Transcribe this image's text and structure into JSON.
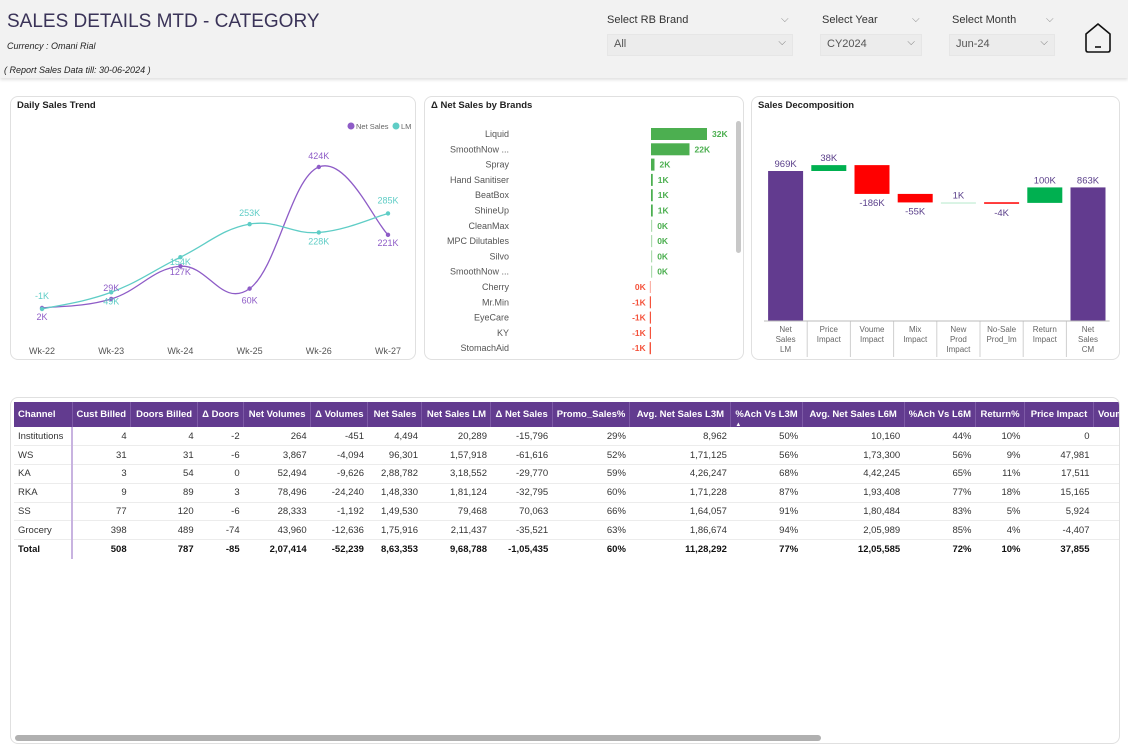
{
  "header": {
    "title": "SALES DETAILS MTD - CATEGORY",
    "currency": "Currency : Omani Rial",
    "report_date": "( Report Sales Data till: 30-06-2024 )"
  },
  "slicers": {
    "brand": {
      "label": "Select RB Brand",
      "value": "All"
    },
    "year": {
      "label": "Select Year",
      "value": "CY2024"
    },
    "month": {
      "label": "Select Month",
      "value": "Jun-24"
    }
  },
  "icons": {
    "home": "home-icon",
    "chevron": "chevron-down-icon"
  },
  "colors": {
    "purple": "#623b8f",
    "net_sales_line": "#8e5cc7",
    "lm_line": "#5fcdc6",
    "green": "#00b050",
    "red": "#ff0000",
    "pos_bar": "#4caf50",
    "neg_bar": "#f4533c"
  },
  "chart_data": [
    {
      "type": "line",
      "title": "Daily Sales Trend",
      "categories": [
        "Wk-22",
        "Wk-23",
        "Wk-24",
        "Wk-25",
        "Wk-26",
        "Wk-27"
      ],
      "series": [
        {
          "name": "Net Sales",
          "values": [
            2,
            29,
            127,
            60,
            424,
            221
          ],
          "labels": [
            "2K",
            "29K",
            "127K",
            "60K",
            "424K",
            "221K"
          ]
        },
        {
          "name": "LM",
          "values": [
            -1,
            49,
            154,
            253,
            228,
            285
          ],
          "labels": [
            "-1K",
            "49K",
            "154K",
            "253K",
            "228K",
            "285K"
          ]
        }
      ],
      "legend": [
        "Net Sales",
        "LM"
      ],
      "legend_position": "top-right",
      "unit": "K"
    },
    {
      "type": "bar",
      "title": "Δ Net Sales by Brands",
      "orientation": "horizontal",
      "categories": [
        "Liquid",
        "SmoothNow ...",
        "Spray",
        "Hand Sanitiser",
        "BeatBox",
        "ShineUp",
        "CleanMax",
        "MPC Dilutables",
        "Silvo",
        "SmoothNow ...",
        "Cherry",
        "Mr.Min",
        "EyeCare",
        "KY",
        "StomachAid"
      ],
      "values": [
        32,
        22,
        2,
        1,
        1,
        1,
        0.1,
        0.1,
        0.1,
        0.1,
        -0.2,
        -0.6,
        -0.6,
        -0.6,
        -0.8
      ],
      "labels": [
        "32K",
        "22K",
        "2K",
        "1K",
        "1K",
        "1K",
        "0K",
        "0K",
        "0K",
        "0K",
        "0K",
        "-1K",
        "-1K",
        "-1K",
        "-1K"
      ],
      "unit": "K"
    },
    {
      "type": "bar",
      "subtype": "waterfall",
      "title": "Sales Decomposition",
      "categories": [
        "Net Sales LM",
        "Price Impact",
        "Voume Impact",
        "Mix Impact",
        "New Prod Impact",
        "No-Sale Prod_Im",
        "Return Impact",
        "Net Sales CM"
      ],
      "category_lines": [
        [
          "Net",
          "Sales",
          "LM"
        ],
        [
          "Price",
          "Impact"
        ],
        [
          "Voume",
          "Impact"
        ],
        [
          "Mix",
          "Impact"
        ],
        [
          "New",
          "Prod",
          "Impact"
        ],
        [
          "No-Sale",
          "Prod_Im"
        ],
        [
          "Return",
          "Impact"
        ],
        [
          "Net",
          "Sales",
          "CM"
        ]
      ],
      "values": [
        969,
        38,
        -186,
        -55,
        1,
        -4,
        100,
        863
      ],
      "labels": [
        "969K",
        "38K",
        "-186K",
        "-55K",
        "1K",
        "-4K",
        "100K",
        "863K"
      ],
      "kinds": [
        "total",
        "delta",
        "delta",
        "delta",
        "delta",
        "delta",
        "delta",
        "total"
      ],
      "unit": "K"
    }
  ],
  "table": {
    "columns": [
      "Channel",
      "Cust Billed",
      "Doors Billed",
      "Δ Doors",
      "Net Volumes",
      "Δ Volumes",
      "Net Sales",
      "Net Sales LM",
      "Δ Net Sales",
      "Promo_Sales%",
      "Avg. Net Sales L3M",
      "%Ach Vs L3M",
      "Avg. Net Sales L6M",
      "%Ach Vs L6M",
      "Return%",
      "Price Impact",
      "Voum"
    ],
    "sort_indicator": "▲",
    "rows": [
      [
        "Institutions",
        "4",
        "4",
        "-2",
        "264",
        "-451",
        "4,494",
        "20,289",
        "-15,796",
        "29%",
        "8,962",
        "50%",
        "10,160",
        "44%",
        "10%",
        "0",
        ""
      ],
      [
        "WS",
        "31",
        "31",
        "-6",
        "3,867",
        "-4,094",
        "96,301",
        "1,57,918",
        "-61,616",
        "52%",
        "1,71,125",
        "56%",
        "1,73,300",
        "56%",
        "9%",
        "47,981",
        ""
      ],
      [
        "KA",
        "3",
        "54",
        "0",
        "52,494",
        "-9,626",
        "2,88,782",
        "3,18,552",
        "-29,770",
        "59%",
        "4,26,247",
        "68%",
        "4,42,245",
        "65%",
        "11%",
        "17,511",
        ""
      ],
      [
        "RKA",
        "9",
        "89",
        "3",
        "78,496",
        "-24,240",
        "1,48,330",
        "1,81,124",
        "-32,795",
        "60%",
        "1,71,228",
        "87%",
        "1,93,408",
        "77%",
        "18%",
        "15,165",
        ""
      ],
      [
        "SS",
        "77",
        "120",
        "-6",
        "28,333",
        "-1,192",
        "1,49,530",
        "79,468",
        "70,063",
        "66%",
        "1,64,057",
        "91%",
        "1,80,484",
        "83%",
        "5%",
        "5,924",
        ""
      ],
      [
        "Grocery",
        "398",
        "489",
        "-74",
        "43,960",
        "-12,636",
        "1,75,916",
        "2,11,437",
        "-35,521",
        "63%",
        "1,86,674",
        "94%",
        "2,05,989",
        "85%",
        "4%",
        "-4,407",
        ""
      ]
    ],
    "total": [
      "Total",
      "508",
      "787",
      "-85",
      "2,07,414",
      "-52,239",
      "8,63,353",
      "9,68,788",
      "-1,05,435",
      "60%",
      "11,28,292",
      "77%",
      "12,05,585",
      "72%",
      "10%",
      "37,855",
      ""
    ]
  }
}
